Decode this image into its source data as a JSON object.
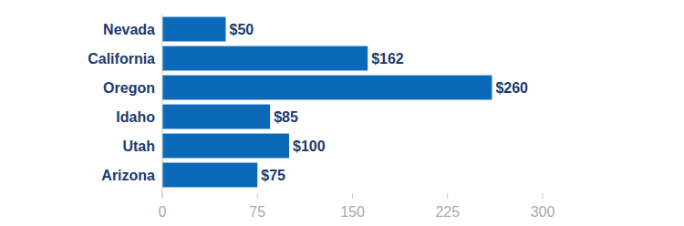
{
  "chart_data": {
    "type": "bar",
    "orientation": "horizontal",
    "categories": [
      "Nevada",
      "California",
      "Oregon",
      "Idaho",
      "Utah",
      "Arizona"
    ],
    "values": [
      50,
      162,
      260,
      85,
      100,
      75
    ],
    "value_labels": [
      "$50",
      "$162",
      "$260",
      "$85",
      "$100",
      "$75"
    ],
    "color": "#0b69b7",
    "xlim": [
      0,
      300
    ],
    "xticks": [
      0,
      75,
      150,
      225,
      300
    ],
    "grid": false,
    "data_labels": true
  }
}
